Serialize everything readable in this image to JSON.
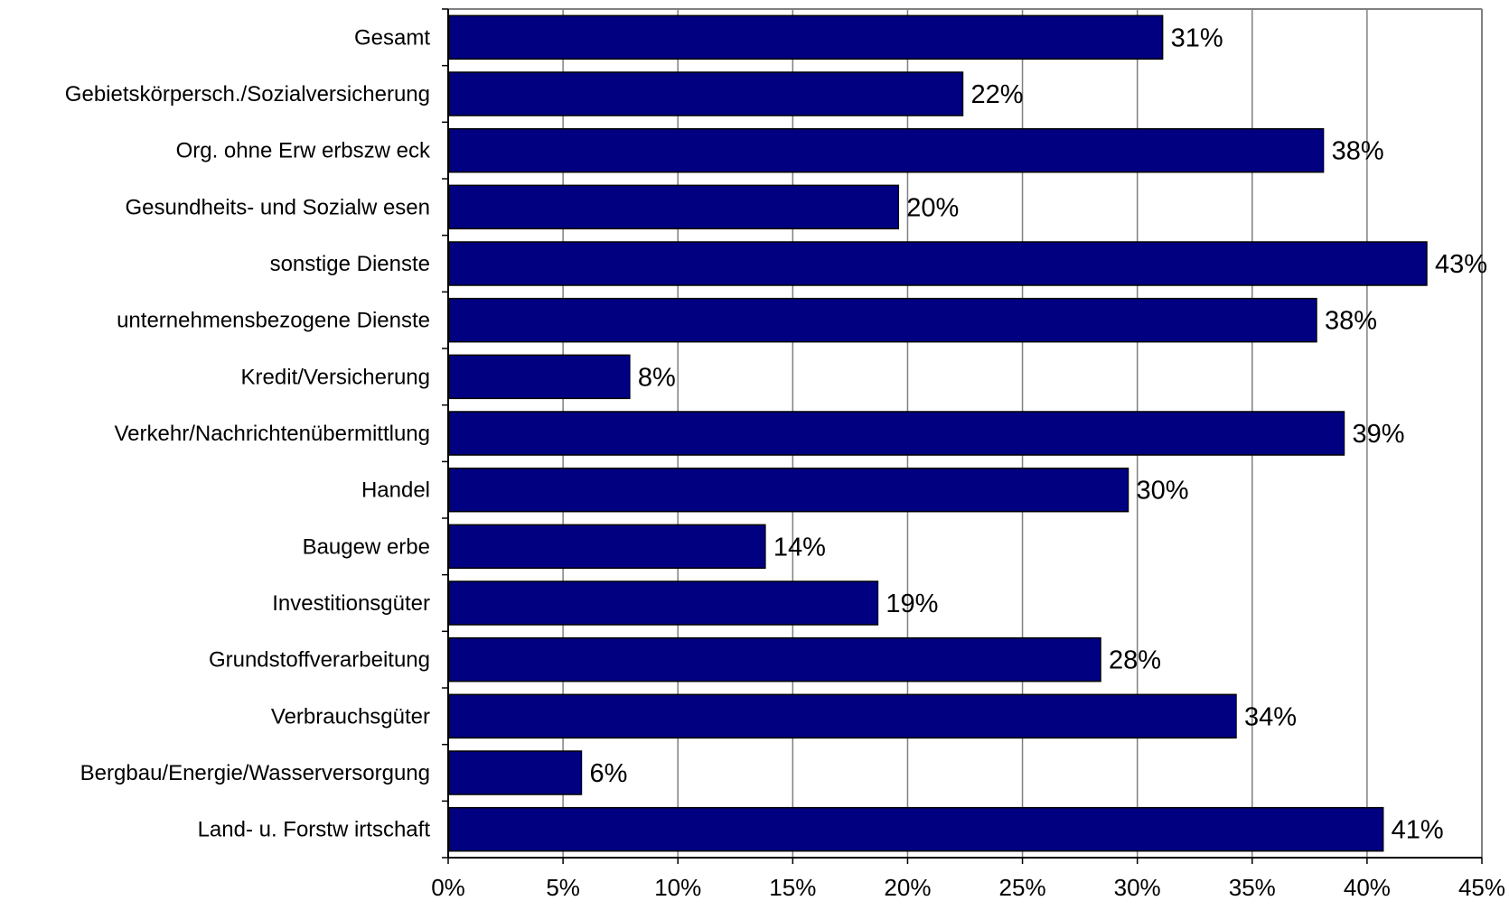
{
  "chart_data": {
    "type": "bar",
    "orientation": "horizontal",
    "categories": [
      "Gesamt",
      "Gebietskörpersch./Sozialversicherung",
      "Org. ohne Erw erbszw eck",
      "Gesundheits- und Sozialw esen",
      "sonstige Dienste",
      "unternehmensbezogene Dienste",
      "Kredit/Versicherung",
      "Verkehr/Nachrichtenübermittlung",
      "Handel",
      "Baugew erbe",
      "Investitionsgüter",
      "Grundstoffverarbeitung",
      "Verbrauchsgüter",
      "Bergbau/Energie/Wasserversorgung",
      "Land- u. Forstw irtschaft"
    ],
    "values": [
      31.1,
      22.4,
      38.1,
      19.6,
      42.6,
      37.8,
      7.9,
      39.0,
      29.6,
      13.8,
      18.7,
      28.4,
      34.3,
      5.8,
      40.7
    ],
    "value_labels": [
      "31%",
      "22%",
      "38%",
      "20%",
      "43%",
      "38%",
      "8%",
      "39%",
      "30%",
      "14%",
      "19%",
      "28%",
      "34%",
      "6%",
      "41%"
    ],
    "xlim": [
      0,
      45
    ],
    "xticks": [
      0,
      5,
      10,
      15,
      20,
      25,
      30,
      35,
      40,
      45
    ],
    "xtick_labels": [
      "0%",
      "5%",
      "10%",
      "15%",
      "20%",
      "25%",
      "30%",
      "35%",
      "40%",
      "45%"
    ],
    "grid": true,
    "legend": "none",
    "colors": {
      "bar_fill": "#000080",
      "bar_stroke": "#000000",
      "grid": "#808080",
      "frame": "#808080"
    }
  }
}
